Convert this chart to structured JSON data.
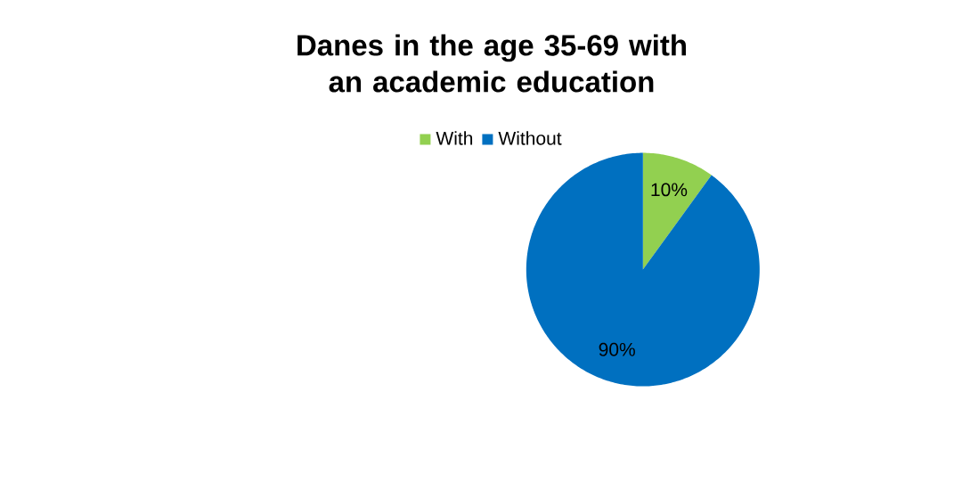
{
  "chart_data": {
    "type": "pie",
    "title": "Danes in the age 35-69 with an academic education",
    "categories": [
      "With",
      "Without"
    ],
    "values": [
      10,
      90
    ],
    "colors": [
      "#92d050",
      "#0070c0"
    ],
    "value_labels": [
      "10%",
      "90%"
    ],
    "legend": "top"
  }
}
